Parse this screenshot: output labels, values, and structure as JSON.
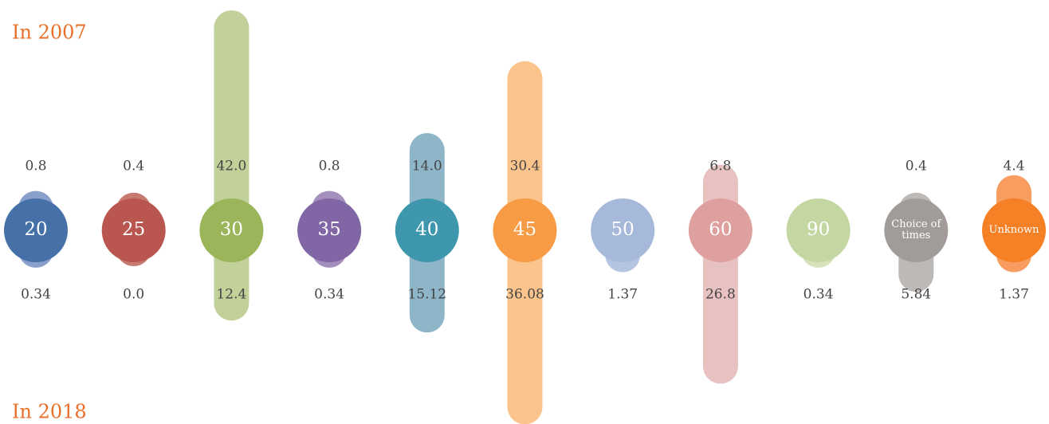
{
  "chart_data": {
    "type": "bar",
    "categories": [
      "20",
      "25",
      "30",
      "35",
      "40",
      "45",
      "50",
      "60",
      "90",
      "Choice of times",
      "Unknown"
    ],
    "colors": [
      "#4571a8",
      "#b9564f",
      "#9bb55a",
      "#8166a5",
      "#3f97ad",
      "#f79b44",
      "#a6b9da",
      "#dea09f",
      "#c4d6a2",
      "#a19c9a",
      "#f58026"
    ],
    "bar_colors": [
      "#8b9fcb",
      "#c77a70",
      "#c2d09a",
      "#a48fbe",
      "#8fb6c8",
      "#fbc48c",
      "#b5c4e0",
      "#e8c2c1",
      "#d5e2bc",
      "#bdb9b7",
      "#f89c5f"
    ],
    "title_color": "#e8702a",
    "series": [
      {
        "name": "In 2007",
        "values": [
          0.8,
          0.4,
          42.0,
          0.8,
          14.0,
          30.4,
          null,
          6.8,
          null,
          0.4,
          4.4
        ],
        "value_labels": [
          "0.8",
          "0.4",
          "42.0",
          "0.8",
          "14.0",
          "30.4",
          null,
          "6.8",
          null,
          "0.4",
          "4.4"
        ]
      },
      {
        "name": "In 2018",
        "values": [
          0.34,
          0.0,
          12.4,
          0.34,
          15.12,
          36.08,
          1.37,
          26.8,
          0.34,
          5.84,
          1.37
        ],
        "value_labels": [
          "0.34",
          "0.0",
          "12.4",
          "0.34",
          "15.12",
          "36.08",
          "1.37",
          "26.8",
          "0.34",
          "5.84",
          "1.37"
        ]
      }
    ]
  }
}
